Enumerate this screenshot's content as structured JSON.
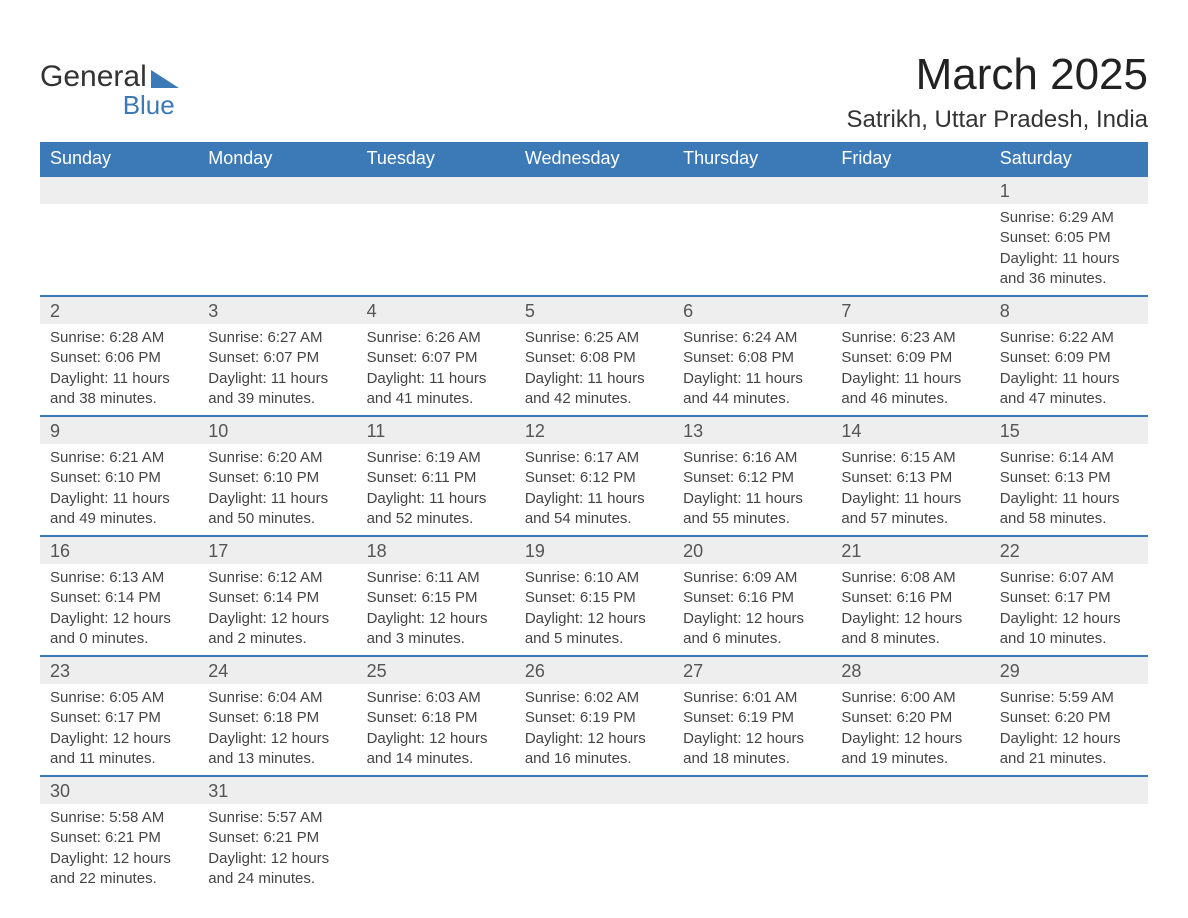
{
  "logo": {
    "word1": "General",
    "word2": "Blue"
  },
  "title": "March 2025",
  "location": "Satrikh, Uttar Pradesh, India",
  "colors": {
    "header_bg": "#3b79b7",
    "header_fg": "#ffffff",
    "daynum_bg": "#eeeeee",
    "row_divider": "#3b79b7",
    "text": "#333333",
    "logo_blue": "#3b79b7"
  },
  "typography": {
    "title_fontsize": 44,
    "location_fontsize": 24,
    "weekday_fontsize": 18,
    "daynum_fontsize": 18,
    "cell_fontsize": 15
  },
  "layout": {
    "columns": 7,
    "rows": 6
  },
  "weekdays": [
    "Sunday",
    "Monday",
    "Tuesday",
    "Wednesday",
    "Thursday",
    "Friday",
    "Saturday"
  ],
  "weeks": [
    [
      null,
      null,
      null,
      null,
      null,
      null,
      {
        "n": "1",
        "sr": "Sunrise: 6:29 AM",
        "ss": "Sunset: 6:05 PM",
        "d1": "Daylight: 11 hours",
        "d2": "and 36 minutes."
      }
    ],
    [
      {
        "n": "2",
        "sr": "Sunrise: 6:28 AM",
        "ss": "Sunset: 6:06 PM",
        "d1": "Daylight: 11 hours",
        "d2": "and 38 minutes."
      },
      {
        "n": "3",
        "sr": "Sunrise: 6:27 AM",
        "ss": "Sunset: 6:07 PM",
        "d1": "Daylight: 11 hours",
        "d2": "and 39 minutes."
      },
      {
        "n": "4",
        "sr": "Sunrise: 6:26 AM",
        "ss": "Sunset: 6:07 PM",
        "d1": "Daylight: 11 hours",
        "d2": "and 41 minutes."
      },
      {
        "n": "5",
        "sr": "Sunrise: 6:25 AM",
        "ss": "Sunset: 6:08 PM",
        "d1": "Daylight: 11 hours",
        "d2": "and 42 minutes."
      },
      {
        "n": "6",
        "sr": "Sunrise: 6:24 AM",
        "ss": "Sunset: 6:08 PM",
        "d1": "Daylight: 11 hours",
        "d2": "and 44 minutes."
      },
      {
        "n": "7",
        "sr": "Sunrise: 6:23 AM",
        "ss": "Sunset: 6:09 PM",
        "d1": "Daylight: 11 hours",
        "d2": "and 46 minutes."
      },
      {
        "n": "8",
        "sr": "Sunrise: 6:22 AM",
        "ss": "Sunset: 6:09 PM",
        "d1": "Daylight: 11 hours",
        "d2": "and 47 minutes."
      }
    ],
    [
      {
        "n": "9",
        "sr": "Sunrise: 6:21 AM",
        "ss": "Sunset: 6:10 PM",
        "d1": "Daylight: 11 hours",
        "d2": "and 49 minutes."
      },
      {
        "n": "10",
        "sr": "Sunrise: 6:20 AM",
        "ss": "Sunset: 6:10 PM",
        "d1": "Daylight: 11 hours",
        "d2": "and 50 minutes."
      },
      {
        "n": "11",
        "sr": "Sunrise: 6:19 AM",
        "ss": "Sunset: 6:11 PM",
        "d1": "Daylight: 11 hours",
        "d2": "and 52 minutes."
      },
      {
        "n": "12",
        "sr": "Sunrise: 6:17 AM",
        "ss": "Sunset: 6:12 PM",
        "d1": "Daylight: 11 hours",
        "d2": "and 54 minutes."
      },
      {
        "n": "13",
        "sr": "Sunrise: 6:16 AM",
        "ss": "Sunset: 6:12 PM",
        "d1": "Daylight: 11 hours",
        "d2": "and 55 minutes."
      },
      {
        "n": "14",
        "sr": "Sunrise: 6:15 AM",
        "ss": "Sunset: 6:13 PM",
        "d1": "Daylight: 11 hours",
        "d2": "and 57 minutes."
      },
      {
        "n": "15",
        "sr": "Sunrise: 6:14 AM",
        "ss": "Sunset: 6:13 PM",
        "d1": "Daylight: 11 hours",
        "d2": "and 58 minutes."
      }
    ],
    [
      {
        "n": "16",
        "sr": "Sunrise: 6:13 AM",
        "ss": "Sunset: 6:14 PM",
        "d1": "Daylight: 12 hours",
        "d2": "and 0 minutes."
      },
      {
        "n": "17",
        "sr": "Sunrise: 6:12 AM",
        "ss": "Sunset: 6:14 PM",
        "d1": "Daylight: 12 hours",
        "d2": "and 2 minutes."
      },
      {
        "n": "18",
        "sr": "Sunrise: 6:11 AM",
        "ss": "Sunset: 6:15 PM",
        "d1": "Daylight: 12 hours",
        "d2": "and 3 minutes."
      },
      {
        "n": "19",
        "sr": "Sunrise: 6:10 AM",
        "ss": "Sunset: 6:15 PM",
        "d1": "Daylight: 12 hours",
        "d2": "and 5 minutes."
      },
      {
        "n": "20",
        "sr": "Sunrise: 6:09 AM",
        "ss": "Sunset: 6:16 PM",
        "d1": "Daylight: 12 hours",
        "d2": "and 6 minutes."
      },
      {
        "n": "21",
        "sr": "Sunrise: 6:08 AM",
        "ss": "Sunset: 6:16 PM",
        "d1": "Daylight: 12 hours",
        "d2": "and 8 minutes."
      },
      {
        "n": "22",
        "sr": "Sunrise: 6:07 AM",
        "ss": "Sunset: 6:17 PM",
        "d1": "Daylight: 12 hours",
        "d2": "and 10 minutes."
      }
    ],
    [
      {
        "n": "23",
        "sr": "Sunrise: 6:05 AM",
        "ss": "Sunset: 6:17 PM",
        "d1": "Daylight: 12 hours",
        "d2": "and 11 minutes."
      },
      {
        "n": "24",
        "sr": "Sunrise: 6:04 AM",
        "ss": "Sunset: 6:18 PM",
        "d1": "Daylight: 12 hours",
        "d2": "and 13 minutes."
      },
      {
        "n": "25",
        "sr": "Sunrise: 6:03 AM",
        "ss": "Sunset: 6:18 PM",
        "d1": "Daylight: 12 hours",
        "d2": "and 14 minutes."
      },
      {
        "n": "26",
        "sr": "Sunrise: 6:02 AM",
        "ss": "Sunset: 6:19 PM",
        "d1": "Daylight: 12 hours",
        "d2": "and 16 minutes."
      },
      {
        "n": "27",
        "sr": "Sunrise: 6:01 AM",
        "ss": "Sunset: 6:19 PM",
        "d1": "Daylight: 12 hours",
        "d2": "and 18 minutes."
      },
      {
        "n": "28",
        "sr": "Sunrise: 6:00 AM",
        "ss": "Sunset: 6:20 PM",
        "d1": "Daylight: 12 hours",
        "d2": "and 19 minutes."
      },
      {
        "n": "29",
        "sr": "Sunrise: 5:59 AM",
        "ss": "Sunset: 6:20 PM",
        "d1": "Daylight: 12 hours",
        "d2": "and 21 minutes."
      }
    ],
    [
      {
        "n": "30",
        "sr": "Sunrise: 5:58 AM",
        "ss": "Sunset: 6:21 PM",
        "d1": "Daylight: 12 hours",
        "d2": "and 22 minutes."
      },
      {
        "n": "31",
        "sr": "Sunrise: 5:57 AM",
        "ss": "Sunset: 6:21 PM",
        "d1": "Daylight: 12 hours",
        "d2": "and 24 minutes."
      },
      null,
      null,
      null,
      null,
      null
    ]
  ]
}
